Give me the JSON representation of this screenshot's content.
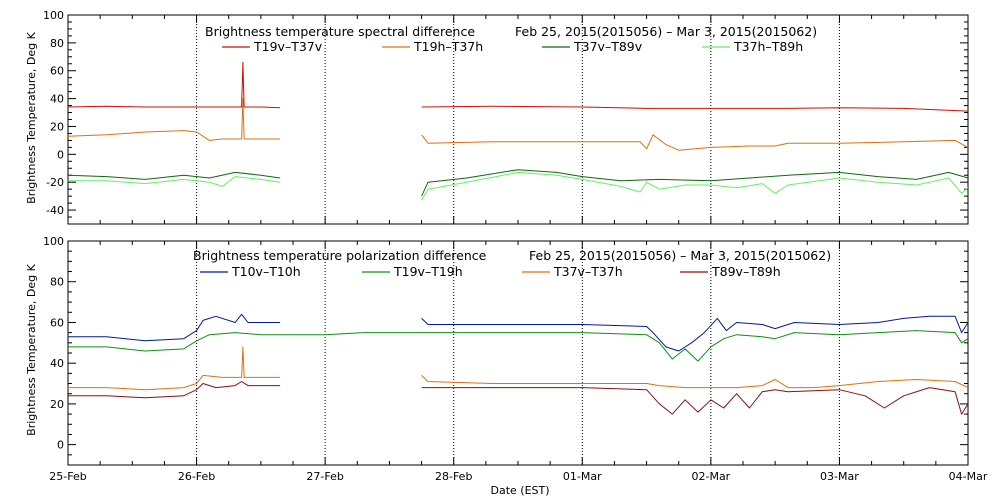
{
  "x_tick_labels": [
    "25-Feb",
    "26-Feb",
    "27-Feb",
    "28-Feb",
    "01-Mar",
    "02-Mar",
    "03-Mar",
    "04-Mar"
  ],
  "x_axis_label": "Date (EST)",
  "chart_data": [
    {
      "type": "line",
      "title_left": "Brightness temperature spectral difference",
      "title_right": "Feb 25, 2015(2015056) – Mar  3, 2015(2015062)",
      "xlabel": "Date (EST)",
      "ylabel": "Brightness Temperature, Deg K",
      "xlim": [
        0,
        7
      ],
      "ylim": [
        -50,
        100
      ],
      "yticks": [
        -40,
        -20,
        0,
        20,
        40,
        60,
        80,
        100
      ],
      "grid": "vertical dotted at day boundaries",
      "legend_position": "top",
      "series": [
        {
          "name": "T19v–T37v",
          "color": "#cc1100",
          "segments": [
            [
              [
                0,
                34
              ],
              [
                0.3,
                34.5
              ],
              [
                0.6,
                34
              ],
              [
                0.9,
                34
              ],
              [
                1.2,
                34
              ],
              [
                1.35,
                34
              ],
              [
                1.36,
                66
              ],
              [
                1.37,
                34
              ],
              [
                1.5,
                34
              ],
              [
                1.65,
                33.5
              ]
            ],
            [
              [
                2.75,
                34
              ],
              [
                3.3,
                34.5
              ],
              [
                4.0,
                34
              ],
              [
                4.5,
                33
              ],
              [
                5.0,
                33
              ],
              [
                5.6,
                33
              ],
              [
                6.0,
                33.5
              ],
              [
                6.5,
                33
              ],
              [
                7.0,
                31
              ]
            ]
          ]
        },
        {
          "name": "T19h–T37h",
          "color": "#e07010",
          "segments": [
            [
              [
                0,
                13
              ],
              [
                0.3,
                14
              ],
              [
                0.6,
                16
              ],
              [
                0.9,
                17
              ],
              [
                1.0,
                16
              ],
              [
                1.1,
                10
              ],
              [
                1.2,
                11
              ],
              [
                1.35,
                11
              ],
              [
                1.36,
                40
              ],
              [
                1.37,
                11
              ],
              [
                1.5,
                11
              ],
              [
                1.65,
                11
              ]
            ],
            [
              [
                2.75,
                14
              ],
              [
                2.8,
                8
              ],
              [
                3.3,
                9
              ],
              [
                4.0,
                9
              ],
              [
                4.45,
                9
              ],
              [
                4.5,
                4
              ],
              [
                4.55,
                14
              ],
              [
                4.65,
                7
              ],
              [
                4.75,
                3
              ],
              [
                5.0,
                5
              ],
              [
                5.3,
                6
              ],
              [
                5.5,
                6
              ],
              [
                5.6,
                8
              ],
              [
                6.0,
                8
              ],
              [
                6.5,
                9
              ],
              [
                6.9,
                10
              ],
              [
                7.0,
                5
              ]
            ]
          ]
        },
        {
          "name": "T37v–T89v",
          "color": "#0c6a0c",
          "segments": [
            [
              [
                0,
                -15
              ],
              [
                0.3,
                -16
              ],
              [
                0.6,
                -18
              ],
              [
                0.9,
                -15
              ],
              [
                1.1,
                -17
              ],
              [
                1.3,
                -13
              ],
              [
                1.5,
                -15
              ],
              [
                1.65,
                -17
              ]
            ],
            [
              [
                2.75,
                -30
              ],
              [
                2.8,
                -20
              ],
              [
                3.1,
                -17
              ],
              [
                3.5,
                -11
              ],
              [
                3.8,
                -13
              ],
              [
                4.0,
                -16
              ],
              [
                4.3,
                -19
              ],
              [
                4.6,
                -18
              ],
              [
                5.0,
                -19
              ],
              [
                5.3,
                -17
              ],
              [
                5.6,
                -15
              ],
              [
                6.0,
                -13
              ],
              [
                6.3,
                -16
              ],
              [
                6.6,
                -18
              ],
              [
                6.85,
                -13
              ],
              [
                7.0,
                -17
              ]
            ]
          ]
        },
        {
          "name": "T37h–T89h",
          "color": "#66ee66",
          "segments": [
            [
              [
                0,
                -19
              ],
              [
                0.3,
                -19
              ],
              [
                0.6,
                -21
              ],
              [
                0.9,
                -18
              ],
              [
                1.1,
                -20
              ],
              [
                1.2,
                -23
              ],
              [
                1.3,
                -16
              ],
              [
                1.5,
                -18
              ],
              [
                1.65,
                -20
              ]
            ],
            [
              [
                2.75,
                -33
              ],
              [
                2.8,
                -25
              ],
              [
                3.1,
                -20
              ],
              [
                3.5,
                -13
              ],
              [
                3.8,
                -15
              ],
              [
                4.0,
                -18
              ],
              [
                4.3,
                -23
              ],
              [
                4.45,
                -27
              ],
              [
                4.5,
                -20
              ],
              [
                4.6,
                -25
              ],
              [
                4.8,
                -22
              ],
              [
                5.0,
                -22
              ],
              [
                5.2,
                -24
              ],
              [
                5.4,
                -21
              ],
              [
                5.5,
                -28
              ],
              [
                5.6,
                -22
              ],
              [
                6.0,
                -17
              ],
              [
                6.3,
                -20
              ],
              [
                6.6,
                -22
              ],
              [
                6.85,
                -17
              ],
              [
                6.95,
                -28
              ],
              [
                7.0,
                -24
              ]
            ]
          ]
        }
      ]
    },
    {
      "type": "line",
      "title_left": "Brightness temperature polarization difference",
      "title_right": "Feb 25, 2015(2015056) – Mar  3, 2015(2015062)",
      "xlabel": "Date (EST)",
      "ylabel": "Brightness Temperature, Deg K",
      "xlim": [
        0,
        7
      ],
      "ylim": [
        -10,
        100
      ],
      "yticks": [
        0,
        20,
        40,
        60,
        80,
        100
      ],
      "grid": "vertical dotted at day boundaries",
      "legend_position": "top",
      "series": [
        {
          "name": "T10v–T10h",
          "color": "#001a99",
          "segments": [
            [
              [
                0,
                53
              ],
              [
                0.3,
                53
              ],
              [
                0.6,
                51
              ],
              [
                0.9,
                52
              ],
              [
                1.0,
                56
              ],
              [
                1.05,
                61
              ],
              [
                1.15,
                63
              ],
              [
                1.3,
                60
              ],
              [
                1.35,
                64
              ],
              [
                1.4,
                60
              ],
              [
                1.65,
                60
              ]
            ],
            [
              [
                2.75,
                62
              ],
              [
                2.8,
                59
              ],
              [
                3.3,
                59
              ],
              [
                4.0,
                59
              ],
              [
                4.5,
                58
              ],
              [
                4.55,
                55
              ],
              [
                4.65,
                48
              ],
              [
                4.75,
                46
              ],
              [
                4.85,
                50
              ],
              [
                4.95,
                55
              ],
              [
                5.05,
                62
              ],
              [
                5.12,
                56
              ],
              [
                5.2,
                60
              ],
              [
                5.4,
                59
              ],
              [
                5.5,
                57
              ],
              [
                5.65,
                60
              ],
              [
                6.0,
                59
              ],
              [
                6.3,
                60
              ],
              [
                6.5,
                62
              ],
              [
                6.7,
                63
              ],
              [
                6.9,
                63
              ],
              [
                6.95,
                55
              ],
              [
                7.0,
                60
              ]
            ]
          ]
        },
        {
          "name": "T19v–T19h",
          "color": "#109010",
          "segments": [
            [
              [
                0,
                48
              ],
              [
                0.3,
                48
              ],
              [
                0.6,
                46
              ],
              [
                0.9,
                47
              ],
              [
                1.0,
                51
              ],
              [
                1.1,
                54
              ],
              [
                1.3,
                55
              ],
              [
                1.5,
                54
              ],
              [
                1.65,
                54
              ],
              [
                2.0,
                54
              ],
              [
                2.3,
                55
              ],
              [
                2.75,
                55
              ],
              [
                3.3,
                55
              ],
              [
                4.0,
                55
              ],
              [
                4.5,
                54
              ],
              [
                4.6,
                50
              ],
              [
                4.7,
                42
              ],
              [
                4.8,
                47
              ],
              [
                4.9,
                41
              ],
              [
                5.0,
                48
              ],
              [
                5.1,
                52
              ],
              [
                5.2,
                54
              ],
              [
                5.4,
                53
              ],
              [
                5.5,
                52
              ],
              [
                5.65,
                55
              ],
              [
                6.0,
                54
              ],
              [
                6.3,
                55
              ],
              [
                6.6,
                56
              ],
              [
                6.9,
                55
              ],
              [
                6.95,
                50
              ],
              [
                7.0,
                52
              ]
            ]
          ]
        },
        {
          "name": "T37v–T37h",
          "color": "#e07010",
          "segments": [
            [
              [
                0,
                28
              ],
              [
                0.3,
                28
              ],
              [
                0.6,
                27
              ],
              [
                0.9,
                28
              ],
              [
                1.0,
                30
              ],
              [
                1.05,
                34
              ],
              [
                1.2,
                33
              ],
              [
                1.35,
                33
              ],
              [
                1.36,
                48
              ],
              [
                1.37,
                33
              ],
              [
                1.65,
                33
              ]
            ],
            [
              [
                2.75,
                34
              ],
              [
                2.8,
                31
              ],
              [
                3.3,
                30
              ],
              [
                4.0,
                30
              ],
              [
                4.5,
                30
              ],
              [
                4.6,
                29
              ],
              [
                4.8,
                28
              ],
              [
                5.0,
                28
              ],
              [
                5.2,
                28
              ],
              [
                5.4,
                29
              ],
              [
                5.5,
                32
              ],
              [
                5.6,
                28
              ],
              [
                5.8,
                28
              ],
              [
                6.0,
                29
              ],
              [
                6.3,
                31
              ],
              [
                6.6,
                32
              ],
              [
                6.9,
                31
              ],
              [
                7.0,
                28
              ]
            ]
          ]
        },
        {
          "name": "T89v–T89h",
          "color": "#881010",
          "segments": [
            [
              [
                0,
                24
              ],
              [
                0.3,
                24
              ],
              [
                0.6,
                23
              ],
              [
                0.9,
                24
              ],
              [
                1.0,
                27
              ],
              [
                1.05,
                30
              ],
              [
                1.15,
                28
              ],
              [
                1.3,
                29
              ],
              [
                1.35,
                31
              ],
              [
                1.4,
                29
              ],
              [
                1.65,
                29
              ]
            ],
            [
              [
                2.75,
                28
              ],
              [
                3.3,
                28
              ],
              [
                4.0,
                28
              ],
              [
                4.5,
                27
              ],
              [
                4.6,
                20
              ],
              [
                4.7,
                15
              ],
              [
                4.8,
                22
              ],
              [
                4.9,
                16
              ],
              [
                5.0,
                22
              ],
              [
                5.1,
                18
              ],
              [
                5.2,
                25
              ],
              [
                5.3,
                18
              ],
              [
                5.4,
                26
              ],
              [
                5.5,
                27
              ],
              [
                5.6,
                26
              ],
              [
                6.0,
                27
              ],
              [
                6.2,
                24
              ],
              [
                6.35,
                18
              ],
              [
                6.5,
                24
              ],
              [
                6.7,
                28
              ],
              [
                6.9,
                26
              ],
              [
                6.95,
                15
              ],
              [
                7.0,
                20
              ]
            ]
          ]
        }
      ]
    }
  ]
}
